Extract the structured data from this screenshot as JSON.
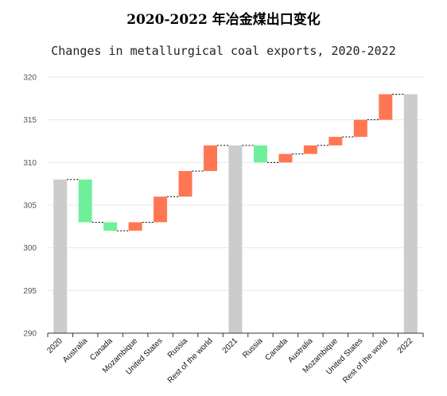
{
  "title": "2020-2022 年冶金煤出口变化",
  "subtitle": "Changes in metallurgical coal exports, 2020-2022",
  "chart_data": {
    "type": "bar",
    "variant": "waterfall",
    "categories": [
      "2020",
      "Australia",
      "Canada",
      "Mozambique",
      "United States",
      "Russia",
      "Rest of the world",
      "2021",
      "Russia",
      "Canada",
      "Australia",
      "Mozambique",
      "United States",
      "Rest of the world",
      "2022"
    ],
    "bars": [
      {
        "kind": "total",
        "start": 0,
        "end": 308
      },
      {
        "kind": "decrease",
        "start": 308,
        "end": 303
      },
      {
        "kind": "decrease",
        "start": 303,
        "end": 302
      },
      {
        "kind": "increase",
        "start": 302,
        "end": 303
      },
      {
        "kind": "increase",
        "start": 303,
        "end": 306
      },
      {
        "kind": "increase",
        "start": 306,
        "end": 309
      },
      {
        "kind": "increase",
        "start": 309,
        "end": 312
      },
      {
        "kind": "total",
        "start": 0,
        "end": 312
      },
      {
        "kind": "decrease",
        "start": 312,
        "end": 310
      },
      {
        "kind": "increase",
        "start": 310,
        "end": 311
      },
      {
        "kind": "increase",
        "start": 311,
        "end": 312
      },
      {
        "kind": "increase",
        "start": 312,
        "end": 313
      },
      {
        "kind": "increase",
        "start": 313,
        "end": 315
      },
      {
        "kind": "increase",
        "start": 315,
        "end": 318
      },
      {
        "kind": "total",
        "start": 0,
        "end": 318
      }
    ],
    "ylim": [
      290,
      320
    ],
    "yticks": [
      290,
      295,
      300,
      305,
      310,
      315,
      320
    ],
    "grid": true,
    "xlabel": "",
    "ylabel": "",
    "colors": {
      "total": "#cccccc",
      "increase": "#ff7752",
      "decrease": "#6ef09a",
      "grid": "#e8e8e8",
      "connector": "#000000"
    }
  }
}
